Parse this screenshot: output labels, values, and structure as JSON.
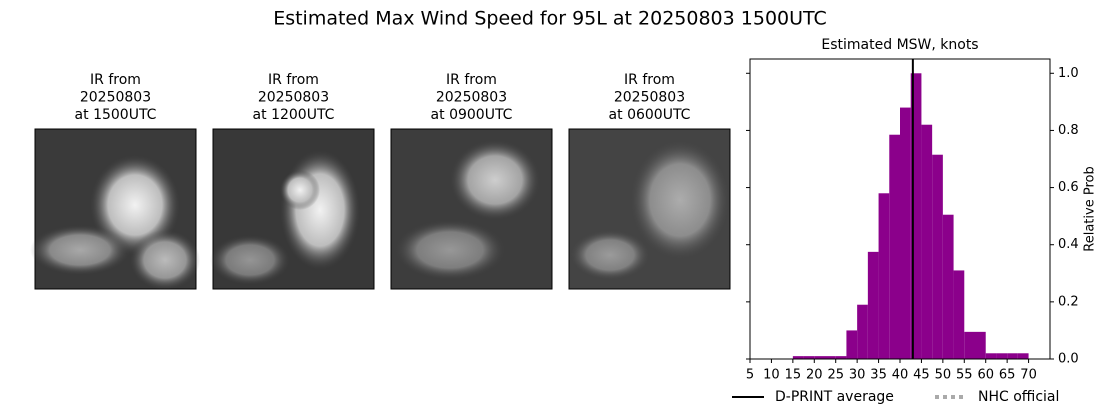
{
  "title": "Estimated Max Wind Speed for 95L at 20250803 1500UTC",
  "panels": [
    {
      "lines": [
        "IR from",
        "20250803",
        "at 1500UTC"
      ]
    },
    {
      "lines": [
        "IR from",
        "20250803",
        "at 1200UTC"
      ]
    },
    {
      "lines": [
        "IR from",
        "20250803",
        "at 0900UTC"
      ]
    },
    {
      "lines": [
        "IR from",
        "20250803",
        "at 0600UTC"
      ]
    }
  ],
  "chart_data": {
    "type": "histogram",
    "title": "Estimated MSW, knots",
    "y_label": "Relative Prob",
    "bins": [
      15,
      17.5,
      20,
      22.5,
      25,
      27.5,
      30,
      32.5,
      35,
      37.5,
      40,
      42.5,
      45,
      47.5,
      50,
      52.5,
      55,
      57.5,
      60,
      62.5,
      65,
      67.5,
      70
    ],
    "counts": [
      0.01,
      0.01,
      0.01,
      0.01,
      0.01,
      0.1,
      0.19,
      0.375,
      0.58,
      0.785,
      0.88,
      1.0,
      0.82,
      0.715,
      0.505,
      0.31,
      0.095,
      0.095,
      0.02,
      0.02,
      0.02,
      0.02
    ],
    "color": "#8b008b",
    "xlim": [
      5,
      75
    ],
    "xticks": [
      5,
      10,
      15,
      20,
      25,
      30,
      35,
      40,
      45,
      50,
      55,
      60,
      65,
      70
    ],
    "ylim": [
      0,
      1.05
    ],
    "yticks": [
      {
        "value": 0,
        "label": "0.0"
      },
      0.2,
      0.4,
      0.6,
      0.8,
      {
        "value": 1,
        "label": "1.0"
      }
    ],
    "lines": [
      {
        "name": "D-PRINT average",
        "color": "#000000",
        "x": 43
      },
      {
        "name": "NHC official",
        "color": "#aaaaaa",
        "style": "dotted"
      }
    ]
  }
}
